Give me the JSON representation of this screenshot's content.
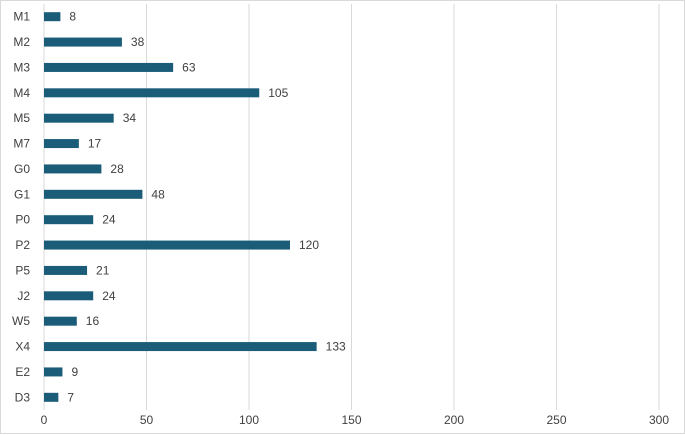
{
  "chart_data": {
    "type": "bar",
    "orientation": "horizontal",
    "title": "",
    "xlabel": "",
    "ylabel": "",
    "categories": [
      "M1",
      "M2",
      "M3",
      "M4",
      "M5",
      "M7",
      "G0",
      "G1",
      "P0",
      "P2",
      "P5",
      "J2",
      "W5",
      "X4",
      "E2",
      "D3"
    ],
    "values": [
      8,
      38,
      63,
      105,
      34,
      17,
      28,
      48,
      24,
      120,
      21,
      24,
      16,
      133,
      9,
      7
    ],
    "xlim": [
      0,
      300
    ],
    "xticks": [
      0,
      50,
      100,
      150,
      200,
      250,
      300
    ],
    "grid": true,
    "legend": "none",
    "data_labels": true,
    "colors": {
      "bar": "#1b5d79",
      "grid": "#d9d9d9",
      "text": "#404040"
    }
  }
}
